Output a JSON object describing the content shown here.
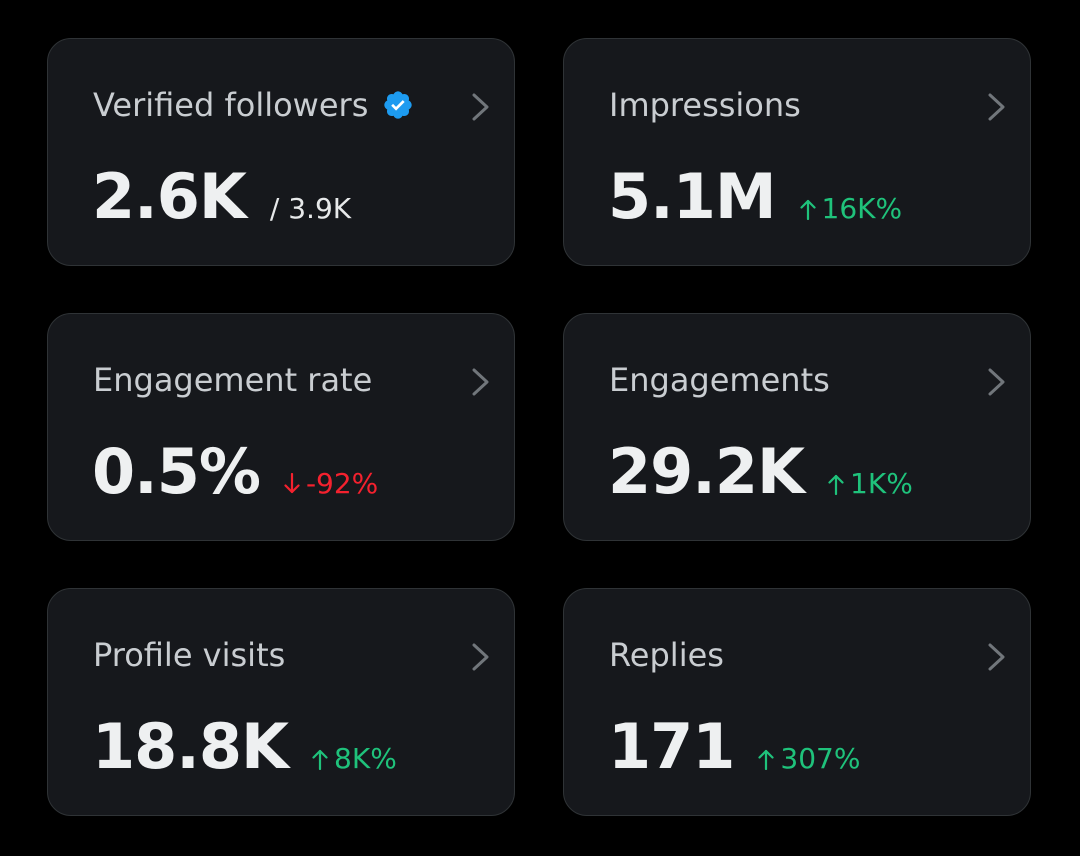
{
  "colors": {
    "background": "#000000",
    "card_background": "#16181c",
    "card_border": "#2f3336",
    "title_text": "#c9cdd1",
    "value_text": "#eef0f1",
    "positive": "#1fc27b",
    "negative": "#f4212e",
    "verified_badge": "#1d9bf0"
  },
  "cards": [
    {
      "title": "Verified followers",
      "value": "2.6K",
      "secondary": "/ 3.9K",
      "has_verified_icon": true,
      "chevron_icon": "chevron-right-icon"
    },
    {
      "title": "Impressions",
      "value": "5.1M",
      "change": "16K%",
      "trend": "up",
      "trend_icon": "arrow-up-icon",
      "chevron_icon": "chevron-right-icon"
    },
    {
      "title": "Engagement rate",
      "value": "0.5%",
      "change": "-92%",
      "trend": "down",
      "trend_icon": "arrow-down-icon",
      "chevron_icon": "chevron-right-icon"
    },
    {
      "title": "Engagements",
      "value": "29.2K",
      "change": "1K%",
      "trend": "up",
      "trend_icon": "arrow-up-icon",
      "chevron_icon": "chevron-right-icon"
    },
    {
      "title": "Profile visits",
      "value": "18.8K",
      "change": "8K%",
      "trend": "up",
      "trend_icon": "arrow-up-icon",
      "chevron_icon": "chevron-right-icon"
    },
    {
      "title": "Replies",
      "value": "171",
      "change": "307%",
      "trend": "up",
      "trend_icon": "arrow-up-icon",
      "chevron_icon": "chevron-right-icon"
    }
  ]
}
